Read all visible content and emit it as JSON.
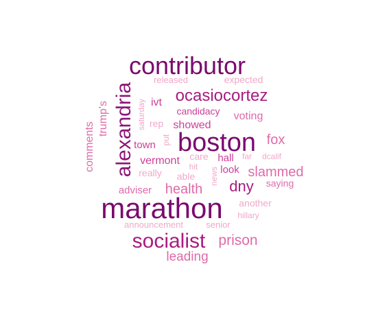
{
  "wordcloud": {
    "words": [
      {
        "text": "contributor",
        "weight": 0.86,
        "color": "#7a0a6e"
      },
      {
        "text": "boston",
        "weight": 0.9,
        "color": "#7a0a6e"
      },
      {
        "text": "marathon",
        "weight": 1.0,
        "color": "#7a0a6e"
      },
      {
        "text": "alexandria",
        "weight": 0.72,
        "color": "#8e1378",
        "orientation": "vertical"
      },
      {
        "text": "ocasiocortez",
        "weight": 0.6,
        "color": "#a81b82"
      },
      {
        "text": "socialist",
        "weight": 0.72,
        "color": "#a81b82"
      },
      {
        "text": "dny",
        "weight": 0.5,
        "color": "#a81b82"
      },
      {
        "text": "prison",
        "weight": 0.5,
        "color": "#df6aa8"
      },
      {
        "text": "fox",
        "weight": 0.45,
        "color": "#df6aa8"
      },
      {
        "text": "slammed",
        "weight": 0.45,
        "color": "#df6aa8"
      },
      {
        "text": "health",
        "weight": 0.45,
        "color": "#df6aa8"
      },
      {
        "text": "leading",
        "weight": 0.42,
        "color": "#df6aa8"
      },
      {
        "text": "showed",
        "weight": 0.4,
        "color": "#cc3f98"
      },
      {
        "text": "ivt",
        "weight": 0.4,
        "color": "#cc3f98"
      },
      {
        "text": "vermont",
        "weight": 0.38,
        "color": "#cc3f98"
      },
      {
        "text": "trump's",
        "weight": 0.38,
        "color": "#df6aa8",
        "orientation": "vertical"
      },
      {
        "text": "comments",
        "weight": 0.36,
        "color": "#df6aa8",
        "orientation": "vertical"
      },
      {
        "text": "candidacy",
        "weight": 0.34,
        "color": "#cc3f98"
      },
      {
        "text": "voting",
        "weight": 0.36,
        "color": "#df6aa8"
      },
      {
        "text": "town",
        "weight": 0.34,
        "color": "#cc3f98"
      },
      {
        "text": "hall",
        "weight": 0.34,
        "color": "#cc3f98"
      },
      {
        "text": "look",
        "weight": 0.34,
        "color": "#cc3f98"
      },
      {
        "text": "adviser",
        "weight": 0.34,
        "color": "#df6aa8"
      },
      {
        "text": "another",
        "weight": 0.32,
        "color": "#f0a8c8"
      },
      {
        "text": "saying",
        "weight": 0.32,
        "color": "#df6aa8"
      },
      {
        "text": "expected",
        "weight": 0.31,
        "color": "#f0a8c8"
      },
      {
        "text": "really",
        "weight": 0.31,
        "color": "#f0a8c8"
      },
      {
        "text": "rep",
        "weight": 0.31,
        "color": "#f0a8c8"
      },
      {
        "text": "care",
        "weight": 0.31,
        "color": "#f0a8c8"
      },
      {
        "text": "able",
        "weight": 0.31,
        "color": "#f0a8c8"
      },
      {
        "text": "announcement",
        "weight": 0.3,
        "color": "#f0a8c8"
      },
      {
        "text": "released",
        "weight": 0.29,
        "color": "#f0a8c8"
      },
      {
        "text": "senior",
        "weight": 0.28,
        "color": "#f0a8c8"
      },
      {
        "text": "hillary",
        "weight": 0.27,
        "color": "#f0a8c8"
      },
      {
        "text": "dcalif",
        "weight": 0.27,
        "color": "#f0a8c8"
      },
      {
        "text": "far",
        "weight": 0.27,
        "color": "#f0a8c8"
      },
      {
        "text": "hit",
        "weight": 0.27,
        "color": "#f0a8c8"
      },
      {
        "text": "saturday",
        "weight": 0.26,
        "color": "#f0a8c8",
        "orientation": "vertical"
      },
      {
        "text": "put",
        "weight": 0.26,
        "color": "#f0a8c8",
        "orientation": "vertical"
      },
      {
        "text": "news",
        "weight": 0.26,
        "color": "#f0a8c8",
        "orientation": "vertical"
      }
    ]
  }
}
